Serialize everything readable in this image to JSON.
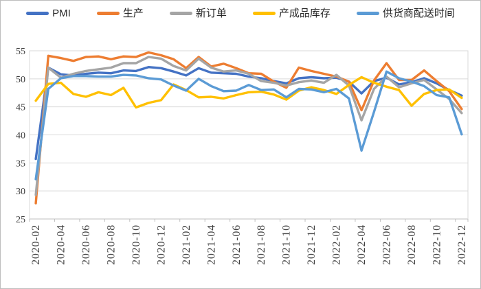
{
  "chart_data": {
    "type": "line",
    "title": "",
    "xlabel": "",
    "ylabel": "",
    "ylim": [
      25,
      55
    ],
    "ytick_step": 5,
    "grid": true,
    "legend_position": "top",
    "x_tick_label_interval": 2,
    "categories": [
      "2020-02",
      "2020-03",
      "2020-04",
      "2020-05",
      "2020-06",
      "2020-07",
      "2020-08",
      "2020-09",
      "2020-10",
      "2020-11",
      "2020-12",
      "2021-01",
      "2021-02",
      "2021-03",
      "2021-04",
      "2021-05",
      "2021-06",
      "2021-07",
      "2021-08",
      "2021-09",
      "2021-10",
      "2021-11",
      "2021-12",
      "2022-01",
      "2022-02",
      "2022-03",
      "2022-04",
      "2022-05",
      "2022-06",
      "2022-07",
      "2022-08",
      "2022-09",
      "2022-10",
      "2022-11",
      "2022-12"
    ],
    "series": [
      {
        "name": "PMI",
        "color": "#4472C4",
        "values": [
          35.7,
          52.0,
          50.8,
          50.6,
          50.9,
          51.1,
          51.0,
          51.5,
          51.4,
          52.1,
          51.9,
          51.3,
          50.6,
          51.9,
          51.1,
          51.0,
          50.9,
          50.4,
          50.1,
          49.6,
          49.2,
          50.1,
          50.3,
          50.1,
          50.2,
          49.5,
          47.4,
          49.6,
          50.2,
          49.0,
          49.4,
          50.1,
          49.2,
          48.0,
          47.0
        ]
      },
      {
        "name": "生产",
        "color": "#ED7D31",
        "values": [
          27.8,
          54.1,
          53.7,
          53.2,
          53.9,
          54.0,
          53.5,
          54.0,
          53.9,
          54.7,
          54.2,
          53.5,
          51.9,
          53.9,
          52.2,
          52.7,
          51.9,
          51.0,
          50.9,
          49.5,
          48.4,
          52.0,
          51.4,
          50.9,
          50.4,
          49.5,
          44.4,
          49.7,
          52.8,
          49.8,
          49.8,
          51.5,
          49.6,
          47.8,
          44.6
        ]
      },
      {
        "name": "新订单",
        "color": "#A5A5A5",
        "values": [
          29.3,
          52.0,
          50.2,
          50.9,
          51.4,
          51.7,
          52.0,
          52.8,
          52.8,
          53.9,
          53.6,
          52.3,
          51.5,
          53.6,
          52.0,
          51.3,
          51.5,
          50.9,
          49.6,
          49.3,
          48.8,
          49.4,
          49.7,
          49.3,
          50.7,
          48.8,
          42.6,
          48.2,
          50.4,
          48.5,
          49.2,
          49.8,
          48.1,
          46.4,
          43.9
        ]
      },
      {
        "name": "产成品库存",
        "color": "#FFC000",
        "values": [
          46.1,
          49.1,
          49.3,
          47.3,
          46.8,
          47.6,
          47.1,
          48.4,
          44.9,
          45.7,
          46.2,
          49.0,
          48.0,
          46.7,
          46.8,
          46.5,
          47.1,
          47.6,
          47.7,
          47.2,
          46.3,
          47.9,
          48.5,
          48.0,
          47.3,
          48.9,
          50.3,
          49.3,
          48.6,
          48.0,
          45.2,
          47.3,
          48.0,
          48.1,
          46.6
        ]
      },
      {
        "name": "供货商配送时间",
        "color": "#5B9BD5",
        "values": [
          32.1,
          48.2,
          50.1,
          50.5,
          50.5,
          50.4,
          50.4,
          50.7,
          50.6,
          50.1,
          49.9,
          48.8,
          47.9,
          50.0,
          48.7,
          47.8,
          47.9,
          48.9,
          48.0,
          48.1,
          46.7,
          48.2,
          48.1,
          47.6,
          48.2,
          46.5,
          37.2,
          44.1,
          51.3,
          50.1,
          49.5,
          48.7,
          47.1,
          46.7,
          40.1
        ]
      }
    ],
    "colors": {
      "gridline": "#D9D9D9",
      "plot_border": "#D9D9D9",
      "axis_line": "#BFBFBF",
      "tick_label": "#3F3F3F",
      "legend_text": "#262626",
      "background": "#FFFFFF"
    }
  }
}
